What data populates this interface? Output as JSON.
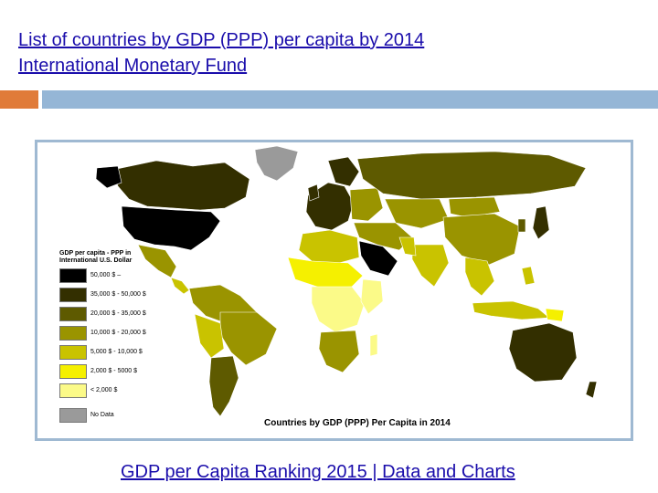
{
  "header": {
    "title_line1": "List of countries by GDP (PPP) per capita by 2014",
    "title_line2": "International Monetary Fund"
  },
  "map": {
    "legend_title": "GDP per capita - PPP in International U.S. Dollar",
    "legend_items": [
      {
        "label": "50,000 $ –",
        "color": "#000000"
      },
      {
        "label": "35,000 $ - 50,000 $",
        "color": "#332f00"
      },
      {
        "label": "20,000 $ - 35,000 $",
        "color": "#5e5a00"
      },
      {
        "label": "10,000 $ - 20,000 $",
        "color": "#9a9400"
      },
      {
        "label": "5,000 $ - 10,000 $",
        "color": "#c9c300"
      },
      {
        "label": "2,000 $ - 5000 $",
        "color": "#f5f000"
      },
      {
        "label": "< 2,000 $",
        "color": "#fbfa88"
      },
      {
        "label": "No Data",
        "color": "#9a9a9a"
      }
    ],
    "caption": "Countries by GDP (PPP) Per Capita in 2014"
  },
  "footer": {
    "link_text": "GDP per Capita Ranking 2015 | Data and Charts"
  }
}
